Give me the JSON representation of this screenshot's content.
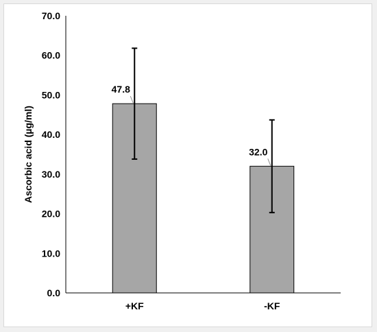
{
  "chart_data": {
    "type": "bar",
    "categories": [
      "+KF",
      "-KF"
    ],
    "values": [
      47.8,
      32.0
    ],
    "errors": [
      14.0,
      11.7
    ],
    "data_labels": [
      "47.8",
      "32.0"
    ],
    "title": "",
    "xlabel": "",
    "ylabel": "Ascorbic acid (µg/ml)",
    "ylim": [
      0,
      70
    ],
    "yticks": [
      "0.0",
      "10.0",
      "20.0",
      "30.0",
      "40.0",
      "50.0",
      "60.0",
      "70.0"
    ],
    "grid": false,
    "legend": "none",
    "colors": {
      "bar_fill": "#a6a6a6",
      "bar_stroke": "#000000",
      "axis": "#000000",
      "leader": "#8c8c8c"
    }
  }
}
